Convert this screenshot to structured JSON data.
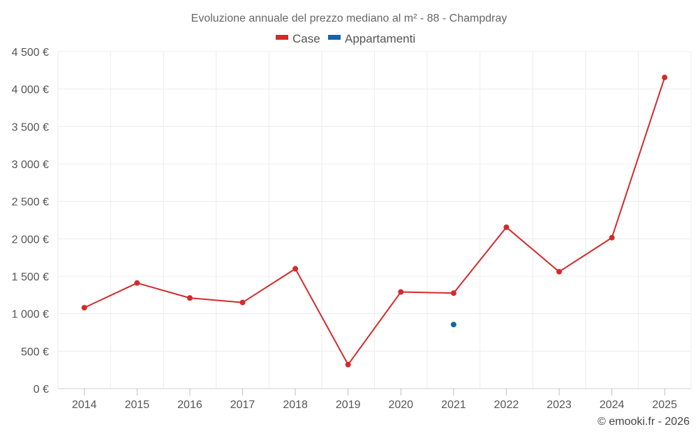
{
  "chart_data": {
    "type": "line",
    "title": "Evoluzione annuale del prezzo mediano al m² - 88 - Champdray",
    "categories": [
      "2014",
      "2015",
      "2016",
      "2017",
      "2018",
      "2019",
      "2020",
      "2021",
      "2022",
      "2023",
      "2024",
      "2025"
    ],
    "series": [
      {
        "name": "Case",
        "color": "#d42a2a",
        "values": [
          1080,
          1410,
          1210,
          1150,
          1600,
          320,
          1290,
          1275,
          2155,
          1560,
          2015,
          4155
        ]
      },
      {
        "name": "Appartamenti",
        "color": "#1565a8",
        "values": [
          null,
          null,
          null,
          null,
          null,
          null,
          null,
          855,
          null,
          null,
          null,
          null
        ]
      }
    ],
    "ylim": [
      0,
      4500
    ],
    "yticks": [
      0,
      500,
      1000,
      1500,
      2000,
      2500,
      3000,
      3500,
      4000,
      4500
    ],
    "ytick_labels": [
      "0 €",
      "500 €",
      "1 000 €",
      "1 500 €",
      "2 000 €",
      "2 500 €",
      "3 000 €",
      "3 500 €",
      "4 000 €",
      "4 500 €"
    ],
    "xlabel": "",
    "ylabel": "",
    "grid": true,
    "legend_position": "top-center"
  },
  "credit": "© emooki.fr - 2026"
}
